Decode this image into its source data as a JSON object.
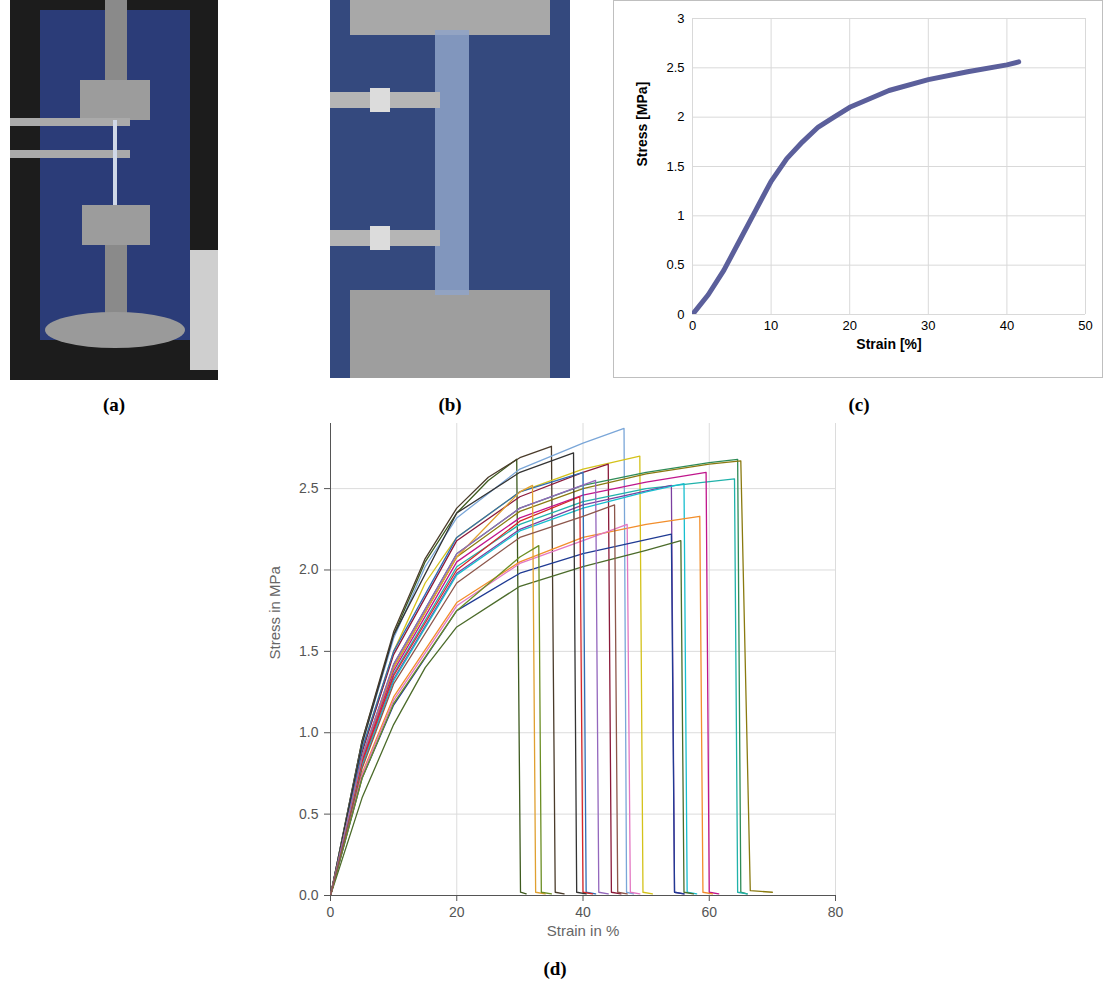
{
  "photos": [
    {
      "label": "(a)"
    },
    {
      "label": "(b)"
    }
  ],
  "chart_data": [
    {
      "type": "line",
      "title": "(c)",
      "x_label": "Strain [%]",
      "y_label": "Stress [MPa]",
      "xlim": [
        0,
        50
      ],
      "xticks": [
        0,
        10,
        20,
        30,
        40,
        50
      ],
      "ylim": [
        0,
        3
      ],
      "yticks": [
        0,
        0.5,
        1,
        1.5,
        2,
        2.5,
        3
      ],
      "grid": true,
      "color": "#5b5f9b",
      "x": [
        0,
        2,
        4,
        6,
        8,
        10,
        12,
        14,
        16,
        18,
        20,
        25,
        30,
        35,
        40,
        41.5
      ],
      "values": [
        0,
        0.2,
        0.45,
        0.75,
        1.05,
        1.35,
        1.58,
        1.75,
        1.9,
        2.0,
        2.1,
        2.27,
        2.38,
        2.46,
        2.53,
        2.56
      ]
    },
    {
      "type": "line",
      "title": "(d)",
      "x_label": "Strain in %",
      "y_label": "Stress in MPa",
      "xlim": [
        0,
        80
      ],
      "xticks": [
        0,
        20,
        40,
        60,
        80
      ],
      "ylim": [
        0,
        2.9
      ],
      "yticks": [
        {
          "value": 0,
          "label": "0.0"
        },
        {
          "value": 0.5,
          "label": "0.5"
        },
        {
          "value": 1,
          "label": "1.0"
        },
        {
          "value": 1.5,
          "label": "1.5"
        },
        {
          "value": 2,
          "label": "2.0"
        },
        {
          "value": 2.5,
          "label": "2.5"
        }
      ],
      "grid": true,
      "series": [
        {
          "color": "#3d5a1e",
          "x": [
            0,
            5,
            10,
            15,
            20,
            25,
            29.5,
            30.1,
            31
          ],
          "values": [
            0,
            0.95,
            1.6,
            2.05,
            2.35,
            2.55,
            2.68,
            0.02,
            0.01
          ]
        },
        {
          "color": "#4a3b2a",
          "x": [
            0,
            5,
            10,
            15,
            20,
            25,
            30,
            35,
            35.6,
            37
          ],
          "values": [
            0,
            0.95,
            1.62,
            2.07,
            2.38,
            2.57,
            2.69,
            2.76,
            0.02,
            0.01
          ]
        },
        {
          "color": "#7aa6d8",
          "x": [
            0,
            5,
            10,
            15,
            20,
            30,
            40,
            46.5,
            46.9,
            48
          ],
          "values": [
            0,
            0.93,
            1.58,
            2.02,
            2.32,
            2.62,
            2.78,
            2.87,
            0.02,
            0.01
          ]
        },
        {
          "color": "#d4c21a",
          "x": [
            0,
            5,
            10,
            15,
            20,
            30,
            40,
            49,
            49.5,
            51
          ],
          "values": [
            0,
            0.9,
            1.5,
            1.92,
            2.2,
            2.48,
            2.62,
            2.7,
            0.02,
            0.01
          ]
        },
        {
          "color": "#8b1a3a",
          "x": [
            0,
            5,
            10,
            20,
            30,
            40,
            44,
            44.5,
            46
          ],
          "values": [
            0,
            0.88,
            1.48,
            2.18,
            2.45,
            2.6,
            2.65,
            0.02,
            0.01
          ]
        },
        {
          "color": "#2e8b57",
          "x": [
            0,
            5,
            10,
            20,
            30,
            40,
            50,
            60,
            64.5,
            65,
            66
          ],
          "values": [
            0,
            0.85,
            1.42,
            2.1,
            2.38,
            2.52,
            2.6,
            2.66,
            2.68,
            0.02,
            0.01
          ]
        },
        {
          "color": "#8a7a10",
          "x": [
            0,
            5,
            10,
            20,
            30,
            40,
            50,
            60,
            65,
            66.5,
            70
          ],
          "values": [
            0,
            0.84,
            1.4,
            2.08,
            2.36,
            2.5,
            2.59,
            2.65,
            2.67,
            0.03,
            0.02
          ]
        },
        {
          "color": "#20b2aa",
          "x": [
            0,
            5,
            10,
            20,
            30,
            40,
            50,
            64,
            64.5,
            66
          ],
          "values": [
            0,
            0.82,
            1.36,
            2.02,
            2.28,
            2.42,
            2.5,
            2.56,
            0.02,
            0.01
          ]
        },
        {
          "color": "#c0168c",
          "x": [
            0,
            5,
            10,
            20,
            30,
            40,
            50,
            59.5,
            60,
            61.5
          ],
          "values": [
            0,
            0.83,
            1.38,
            2.05,
            2.32,
            2.46,
            2.54,
            2.6,
            0.02,
            0.01
          ]
        },
        {
          "color": "#7b3fa0",
          "x": [
            0,
            5,
            10,
            20,
            30,
            40,
            54,
            54.5,
            56
          ],
          "values": [
            0,
            0.8,
            1.33,
            1.98,
            2.25,
            2.4,
            2.52,
            0.02,
            0.01
          ]
        },
        {
          "color": "#17becf",
          "x": [
            0,
            5,
            10,
            20,
            30,
            40,
            50,
            56,
            56.5,
            58
          ],
          "values": [
            0,
            0.8,
            1.32,
            1.97,
            2.24,
            2.38,
            2.48,
            2.53,
            0.02,
            0.01
          ]
        },
        {
          "color": "#f28e2b",
          "x": [
            0,
            5,
            10,
            20,
            30,
            40,
            50,
            58.5,
            59,
            60.5
          ],
          "values": [
            0,
            0.75,
            1.22,
            1.8,
            2.05,
            2.2,
            2.28,
            2.33,
            0.02,
            0.01
          ]
        },
        {
          "color": "#e377c2",
          "x": [
            0,
            5,
            10,
            20,
            30,
            40,
            47,
            47.5,
            49
          ],
          "values": [
            0,
            0.74,
            1.2,
            1.78,
            2.04,
            2.18,
            2.28,
            0.02,
            0.01
          ]
        },
        {
          "color": "#1f3a93",
          "x": [
            0,
            5,
            10,
            20,
            30,
            40,
            54,
            54.5,
            56
          ],
          "values": [
            0,
            0.72,
            1.17,
            1.75,
            1.98,
            2.1,
            2.22,
            0.02,
            0.01
          ]
        },
        {
          "color": "#4b6b2a",
          "x": [
            0,
            5,
            10,
            15,
            20,
            30,
            40,
            50,
            55.5,
            56,
            57.5
          ],
          "values": [
            0,
            0.6,
            1.05,
            1.4,
            1.65,
            1.9,
            2.02,
            2.12,
            2.18,
            0.02,
            0.01
          ]
        },
        {
          "color": "#2f6db5",
          "x": [
            0,
            5,
            10,
            20,
            30,
            40,
            40.5,
            42
          ],
          "values": [
            0,
            0.9,
            1.5,
            2.2,
            2.48,
            2.6,
            0.02,
            0.01
          ]
        },
        {
          "color": "#d62728",
          "x": [
            0,
            5,
            10,
            20,
            30,
            39.5,
            40,
            41.5
          ],
          "values": [
            0,
            0.82,
            1.35,
            2.0,
            2.3,
            2.45,
            0.02,
            0.01
          ]
        },
        {
          "color": "#333333",
          "x": [
            0,
            5,
            10,
            20,
            30,
            38.5,
            39,
            40.5
          ],
          "values": [
            0,
            0.93,
            1.6,
            2.35,
            2.6,
            2.72,
            0.02,
            0.01
          ]
        },
        {
          "color": "#e0a030",
          "x": [
            0,
            5,
            10,
            20,
            30,
            32,
            32.5,
            34
          ],
          "values": [
            0,
            0.85,
            1.4,
            2.08,
            2.48,
            2.52,
            0.02,
            0.01
          ]
        },
        {
          "color": "#6b8e23",
          "x": [
            0,
            5,
            10,
            20,
            30,
            33,
            33.4,
            35
          ],
          "values": [
            0,
            0.72,
            1.18,
            1.75,
            2.08,
            2.15,
            0.02,
            0.01
          ]
        },
        {
          "color": "#9467bd",
          "x": [
            0,
            5,
            10,
            20,
            30,
            42,
            42.5,
            44
          ],
          "values": [
            0,
            0.85,
            1.42,
            2.1,
            2.38,
            2.55,
            0.02,
            0.01
          ]
        },
        {
          "color": "#8c564b",
          "x": [
            0,
            5,
            10,
            20,
            30,
            40,
            45,
            45.5,
            47
          ],
          "values": [
            0,
            0.78,
            1.3,
            1.92,
            2.2,
            2.33,
            2.4,
            0.02,
            0.01
          ]
        }
      ]
    }
  ]
}
